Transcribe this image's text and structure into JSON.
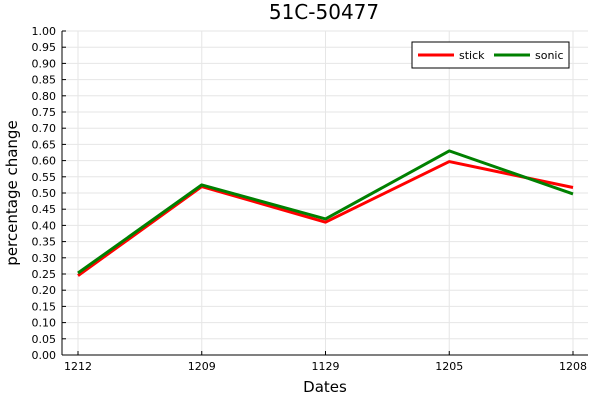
{
  "chart_data": {
    "type": "line",
    "title": "51C-50477",
    "xlabel": "Dates",
    "ylabel": "percentage change",
    "categories": [
      "1212",
      "1209",
      "1129",
      "1205",
      "1208"
    ],
    "ylim": [
      0,
      1
    ],
    "yticks": [
      "0.00",
      "0.05",
      "0.10",
      "0.15",
      "0.20",
      "0.25",
      "0.30",
      "0.35",
      "0.40",
      "0.45",
      "0.50",
      "0.55",
      "0.60",
      "0.65",
      "0.70",
      "0.75",
      "0.80",
      "0.85",
      "0.90",
      "0.95",
      "1.00"
    ],
    "grid": true,
    "legend_position": "top-right",
    "series": [
      {
        "name": "stick",
        "color": "#ff0000",
        "values": [
          0.245,
          0.52,
          0.41,
          0.597,
          0.517
        ]
      },
      {
        "name": "sonic",
        "color": "#008000",
        "values": [
          0.253,
          0.525,
          0.42,
          0.63,
          0.497
        ]
      }
    ]
  }
}
